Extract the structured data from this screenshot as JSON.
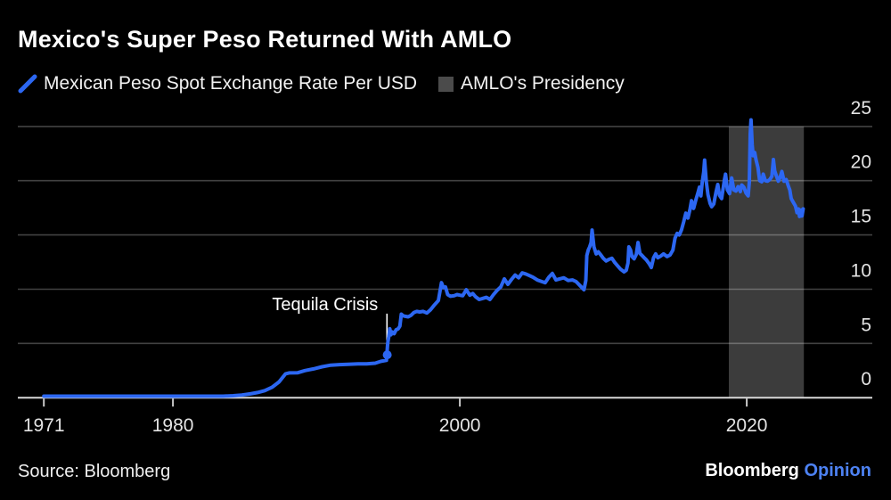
{
  "header": {
    "title": "Mexico's Super Peso Returned With AMLO"
  },
  "legend": {
    "items": [
      {
        "label": "Mexican Peso Spot Exchange Rate Per USD",
        "swatch": "line-slash",
        "color": "#2c67f2"
      },
      {
        "label": "AMLO's Presidency",
        "swatch": "square",
        "color": "#4b4b4b"
      }
    ]
  },
  "footer": {
    "source": "Source: Bloomberg",
    "logo_brand": "Bloomberg",
    "logo_suffix": "Opinion",
    "logo_suffix_color": "#4d82f3"
  },
  "chart_data": {
    "type": "line",
    "title": "Mexico's Super Peso Returned With AMLO",
    "xlabel": "",
    "ylabel": "Mexican Peso Spot Exchange Rate Per USD",
    "grid": "horizontal",
    "legend_position": "top",
    "x_axis": {
      "min": 1971,
      "max": 2023.98,
      "ticks": [
        1971,
        1980,
        2000,
        2020
      ]
    },
    "y_axis": {
      "min": 0,
      "max": 25,
      "ticks": [
        0,
        5,
        10,
        15,
        20,
        25
      ],
      "side": "right"
    },
    "band": {
      "label": "AMLO's Presidency",
      "from_year": 2018.75,
      "to_year": 2023.98,
      "color": "#3c3c3c"
    },
    "annotation": {
      "text": "Tequila Crisis",
      "year": 1994.92,
      "line_from_value": 7.75,
      "line_to_value": 4.45,
      "marker_value": 3.95
    },
    "series": [
      {
        "name": "Mexican Peso Spot Exchange Rate Per USD",
        "color": "#2c67f2",
        "points": [
          [
            1971,
            0.012
          ],
          [
            1973,
            0.012
          ],
          [
            1976.6,
            0.013
          ],
          [
            1976.75,
            0.02
          ],
          [
            1977.2,
            0.023
          ],
          [
            1979,
            0.023
          ],
          [
            1981.5,
            0.026
          ],
          [
            1982.1,
            0.047
          ],
          [
            1982.5,
            0.07
          ],
          [
            1982.95,
            0.1
          ],
          [
            1983.5,
            0.13
          ],
          [
            1984.2,
            0.18
          ],
          [
            1984.8,
            0.25
          ],
          [
            1985.4,
            0.35
          ],
          [
            1985.9,
            0.48
          ],
          [
            1986.4,
            0.65
          ],
          [
            1986.9,
            0.95
          ],
          [
            1987.4,
            1.45
          ],
          [
            1987.85,
            2.2
          ],
          [
            1988.1,
            2.28
          ],
          [
            1988.7,
            2.3
          ],
          [
            1989.2,
            2.5
          ],
          [
            1989.8,
            2.65
          ],
          [
            1990.4,
            2.85
          ],
          [
            1991,
            3
          ],
          [
            1991.6,
            3.05
          ],
          [
            1992.2,
            3.08
          ],
          [
            1992.9,
            3.12
          ],
          [
            1993.5,
            3.11
          ],
          [
            1994.1,
            3.18
          ],
          [
            1994.5,
            3.35
          ],
          [
            1994.88,
            3.44
          ],
          [
            1994.97,
            5
          ],
          [
            1995.05,
            5.65
          ],
          [
            1995.12,
            6.35
          ],
          [
            1995.2,
            5.8
          ],
          [
            1995.3,
            6.05
          ],
          [
            1995.42,
            5.9
          ],
          [
            1995.55,
            6.25
          ],
          [
            1995.7,
            6.35
          ],
          [
            1995.82,
            6.6
          ],
          [
            1995.92,
            7.7
          ],
          [
            1996.05,
            7.55
          ],
          [
            1996.2,
            7.5
          ],
          [
            1996.4,
            7.45
          ],
          [
            1996.6,
            7.6
          ],
          [
            1996.8,
            7.85
          ],
          [
            1997,
            7.95
          ],
          [
            1997.2,
            7.9
          ],
          [
            1997.45,
            7.95
          ],
          [
            1997.7,
            7.8
          ],
          [
            1997.95,
            8.1
          ],
          [
            1998.2,
            8.5
          ],
          [
            1998.5,
            8.95
          ],
          [
            1998.72,
            10.6
          ],
          [
            1998.85,
            10.15
          ],
          [
            1999,
            10.2
          ],
          [
            1999.15,
            9.5
          ],
          [
            1999.35,
            9.35
          ],
          [
            1999.6,
            9.4
          ],
          [
            1999.8,
            9.5
          ],
          [
            2000,
            9.45
          ],
          [
            2000.2,
            9.4
          ],
          [
            2000.45,
            9.95
          ],
          [
            2000.7,
            9.45
          ],
          [
            2000.9,
            9.6
          ],
          [
            2001.1,
            9.3
          ],
          [
            2001.35,
            9.05
          ],
          [
            2001.6,
            9.15
          ],
          [
            2001.85,
            9.25
          ],
          [
            2002.1,
            9.05
          ],
          [
            2002.35,
            9.5
          ],
          [
            2002.6,
            9.9
          ],
          [
            2002.85,
            10.2
          ],
          [
            2003.1,
            10.95
          ],
          [
            2003.35,
            10.45
          ],
          [
            2003.6,
            10.9
          ],
          [
            2003.85,
            11.3
          ],
          [
            2004.1,
            11.05
          ],
          [
            2004.35,
            11.5
          ],
          [
            2004.6,
            11.4
          ],
          [
            2004.85,
            11.25
          ],
          [
            2005.1,
            11.1
          ],
          [
            2005.4,
            10.85
          ],
          [
            2005.7,
            10.7
          ],
          [
            2005.95,
            10.6
          ],
          [
            2006.2,
            11.1
          ],
          [
            2006.45,
            11.45
          ],
          [
            2006.7,
            10.85
          ],
          [
            2006.95,
            10.95
          ],
          [
            2007.25,
            11.05
          ],
          [
            2007.55,
            10.8
          ],
          [
            2007.85,
            10.85
          ],
          [
            2008.1,
            10.7
          ],
          [
            2008.4,
            10.3
          ],
          [
            2008.65,
            9.95
          ],
          [
            2008.78,
            10.8
          ],
          [
            2008.85,
            13.1
          ],
          [
            2008.95,
            13.6
          ],
          [
            2009.05,
            13.9
          ],
          [
            2009.15,
            14.3
          ],
          [
            2009.22,
            15.45
          ],
          [
            2009.35,
            13.9
          ],
          [
            2009.5,
            13.25
          ],
          [
            2009.65,
            13.45
          ],
          [
            2009.8,
            13.2
          ],
          [
            2010,
            12.85
          ],
          [
            2010.2,
            12.6
          ],
          [
            2010.4,
            12.75
          ],
          [
            2010.6,
            12.85
          ],
          [
            2010.8,
            12.45
          ],
          [
            2011,
            12.15
          ],
          [
            2011.2,
            11.85
          ],
          [
            2011.45,
            11.6
          ],
          [
            2011.6,
            11.75
          ],
          [
            2011.72,
            12.4
          ],
          [
            2011.78,
            13.9
          ],
          [
            2011.9,
            13.6
          ],
          [
            2012,
            13
          ],
          [
            2012.15,
            12.8
          ],
          [
            2012.3,
            13.2
          ],
          [
            2012.42,
            14.3
          ],
          [
            2012.55,
            13.3
          ],
          [
            2012.7,
            13.1
          ],
          [
            2012.85,
            12.9
          ],
          [
            2013,
            12.7
          ],
          [
            2013.2,
            12.35
          ],
          [
            2013.35,
            12
          ],
          [
            2013.5,
            12.9
          ],
          [
            2013.65,
            13.25
          ],
          [
            2013.8,
            12.9
          ],
          [
            2014,
            13.05
          ],
          [
            2014.2,
            13.25
          ],
          [
            2014.45,
            13
          ],
          [
            2014.65,
            13.15
          ],
          [
            2014.85,
            13.6
          ],
          [
            2015,
            14.7
          ],
          [
            2015.15,
            15.15
          ],
          [
            2015.3,
            15
          ],
          [
            2015.45,
            15.45
          ],
          [
            2015.6,
            16.2
          ],
          [
            2015.75,
            17
          ],
          [
            2015.9,
            16.55
          ],
          [
            2016.05,
            17.4
          ],
          [
            2016.15,
            18.15
          ],
          [
            2016.3,
            17.45
          ],
          [
            2016.45,
            18.2
          ],
          [
            2016.6,
            18.9
          ],
          [
            2016.7,
            19.4
          ],
          [
            2016.8,
            18.6
          ],
          [
            2016.9,
            19.9
          ],
          [
            2017,
            20.8
          ],
          [
            2017.06,
            21.9
          ],
          [
            2017.18,
            19.9
          ],
          [
            2017.3,
            18.7
          ],
          [
            2017.45,
            17.9
          ],
          [
            2017.55,
            17.6
          ],
          [
            2017.7,
            17.85
          ],
          [
            2017.85,
            18.9
          ],
          [
            2017.98,
            19.65
          ],
          [
            2018.1,
            18.65
          ],
          [
            2018.25,
            18.35
          ],
          [
            2018.45,
            20.1
          ],
          [
            2018.52,
            20.6
          ],
          [
            2018.65,
            19.15
          ],
          [
            2018.8,
            18.8
          ],
          [
            2018.95,
            20.25
          ],
          [
            2019.1,
            19.15
          ],
          [
            2019.25,
            19.05
          ],
          [
            2019.4,
            19.45
          ],
          [
            2019.55,
            19
          ],
          [
            2019.65,
            19.6
          ],
          [
            2019.8,
            19.4
          ],
          [
            2019.95,
            18.85
          ],
          [
            2020.1,
            18.6
          ],
          [
            2020.18,
            19.9
          ],
          [
            2020.24,
            24.3
          ],
          [
            2020.3,
            25.6
          ],
          [
            2020.38,
            23.3
          ],
          [
            2020.45,
            22.3
          ],
          [
            2020.55,
            22.6
          ],
          [
            2020.65,
            21.9
          ],
          [
            2020.78,
            21.2
          ],
          [
            2020.9,
            20
          ],
          [
            2021.05,
            19.9
          ],
          [
            2021.15,
            20.6
          ],
          [
            2021.3,
            20
          ],
          [
            2021.45,
            19.95
          ],
          [
            2021.6,
            20.1
          ],
          [
            2021.75,
            20.4
          ],
          [
            2021.86,
            21.95
          ],
          [
            2021.95,
            20.9
          ],
          [
            2022.05,
            20.5
          ],
          [
            2022.2,
            19.95
          ],
          [
            2022.32,
            20.3
          ],
          [
            2022.45,
            20.85
          ],
          [
            2022.6,
            19.95
          ],
          [
            2022.75,
            20.1
          ],
          [
            2022.9,
            19.5
          ],
          [
            2023,
            19.15
          ],
          [
            2023.1,
            18.35
          ],
          [
            2023.25,
            18
          ],
          [
            2023.4,
            17.65
          ],
          [
            2023.5,
            17.05
          ],
          [
            2023.6,
            17.4
          ],
          [
            2023.68,
            16.7
          ],
          [
            2023.78,
            17.3
          ],
          [
            2023.85,
            16.75
          ],
          [
            2023.93,
            17.4
          ]
        ]
      }
    ]
  }
}
